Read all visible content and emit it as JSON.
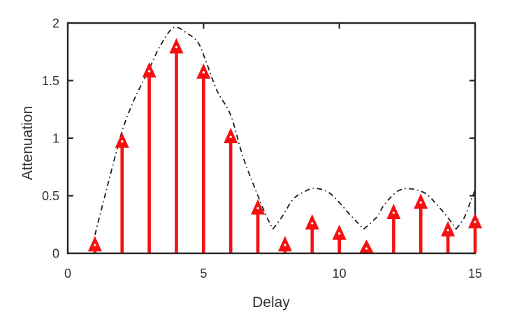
{
  "chart_data": {
    "type": "stem",
    "xlabel": "Delay",
    "ylabel": "Attenuation",
    "xlim": [
      0,
      15
    ],
    "ylim": [
      0,
      2
    ],
    "xticks": [
      0,
      5,
      10,
      15
    ],
    "yticks": [
      0,
      0.5,
      1,
      1.5,
      2
    ],
    "xtick_labels": [
      "0",
      "5",
      "10",
      "15"
    ],
    "ytick_labels": [
      "0",
      "0.5",
      "1",
      "1.5",
      "2"
    ],
    "grid": false,
    "box": true,
    "legend": null,
    "axis_color": "#262626",
    "tick_label_color": "#333333",
    "stems": {
      "marker": "filled-up-arrowhead",
      "color": "#f51111",
      "x": [
        1,
        2,
        3,
        4,
        5,
        6,
        7,
        8,
        9,
        10,
        11,
        12,
        13,
        14,
        15
      ],
      "values": [
        0.15,
        1.05,
        1.66,
        1.87,
        1.65,
        1.09,
        0.47,
        0.15,
        0.34,
        0.25,
        0.12,
        0.43,
        0.52,
        0.28,
        0.35
      ]
    },
    "envelope": {
      "style": "dash-dot",
      "color": "#1c1c1c",
      "segments": [
        [
          [
            1.0,
            0.16
          ],
          [
            1.5,
            0.62
          ],
          [
            2.0,
            1.06
          ],
          [
            2.4,
            1.31
          ],
          [
            2.7,
            1.46
          ],
          [
            3.0,
            1.6
          ],
          [
            3.4,
            1.8
          ],
          [
            3.9,
            1.96
          ],
          [
            4.4,
            1.91
          ],
          [
            4.8,
            1.83
          ],
          [
            5.1,
            1.66
          ],
          [
            5.5,
            1.41
          ],
          [
            6.0,
            1.2
          ],
          [
            6.45,
            0.84
          ],
          [
            7.0,
            0.5
          ],
          [
            7.3,
            0.33
          ],
          [
            7.55,
            0.21
          ]
        ],
        [
          [
            7.55,
            0.21
          ],
          [
            7.9,
            0.32
          ],
          [
            8.3,
            0.47
          ],
          [
            8.75,
            0.54
          ],
          [
            9.1,
            0.565
          ],
          [
            9.6,
            0.53
          ],
          [
            10.0,
            0.44
          ],
          [
            10.45,
            0.32
          ],
          [
            10.9,
            0.21
          ]
        ],
        [
          [
            10.9,
            0.21
          ],
          [
            11.4,
            0.32
          ],
          [
            11.65,
            0.42
          ],
          [
            12.15,
            0.54
          ],
          [
            12.63,
            0.56
          ],
          [
            13.17,
            0.52
          ],
          [
            13.6,
            0.42
          ],
          [
            14.03,
            0.3
          ],
          [
            14.3,
            0.21
          ]
        ],
        [
          [
            14.3,
            0.21
          ],
          [
            14.6,
            0.31
          ],
          [
            14.85,
            0.46
          ],
          [
            15,
            0.55
          ]
        ]
      ]
    }
  }
}
